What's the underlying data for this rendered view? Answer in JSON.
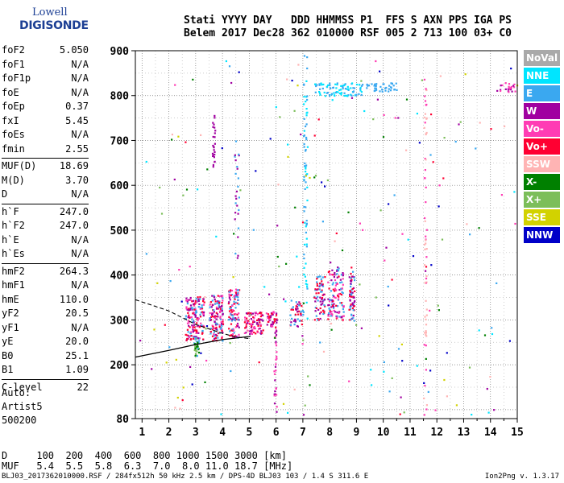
{
  "logo": {
    "line1": "Lowell",
    "line2": "DIGISONDE"
  },
  "header": {
    "labels": "Stati YYYY DAY   DDD HHMMSS P1  FFS S AXN PPS IGA PS",
    "values": "Belem 2017 Dec28 362 010000 RSF 005 2 713 100 03+ C0"
  },
  "params": [
    {
      "label": "foF2",
      "value": "5.050"
    },
    {
      "label": "foF1",
      "value": "N/A"
    },
    {
      "label": "foF1p",
      "value": "N/A"
    },
    {
      "label": "foE",
      "value": "N/A"
    },
    {
      "label": "foEp",
      "value": "0.37"
    },
    {
      "label": "fxI",
      "value": "5.45"
    },
    {
      "label": "foEs",
      "value": "N/A"
    },
    {
      "label": "fmin",
      "value": "2.55"
    },
    {
      "label": "MUF(D)",
      "value": "18.69"
    },
    {
      "label": "M(D)",
      "value": "3.70"
    },
    {
      "label": "D",
      "value": "N/A"
    },
    {
      "label": "h`F",
      "value": "247.0"
    },
    {
      "label": "h`F2",
      "value": "247.0"
    },
    {
      "label": "h`E",
      "value": "N/A"
    },
    {
      "label": "h`Es",
      "value": "N/A"
    },
    {
      "label": "hmF2",
      "value": "264.3"
    },
    {
      "label": "hmF1",
      "value": "N/A"
    },
    {
      "label": "hmE",
      "value": "110.0"
    },
    {
      "label": "yF2",
      "value": "20.5"
    },
    {
      "label": "yF1",
      "value": "N/A"
    },
    {
      "label": "yE",
      "value": "20.0"
    },
    {
      "label": "B0",
      "value": "25.1"
    },
    {
      "label": "B1",
      "value": "1.09"
    },
    {
      "label": "C-level",
      "value": "22"
    }
  ],
  "auto": {
    "line1": "Auto:",
    "line2": "Artist5",
    "line3": "500200"
  },
  "legend": [
    {
      "label": "NoVal",
      "color": "#a9a9a9"
    },
    {
      "label": "NNE",
      "color": "#00e5ff"
    },
    {
      "label": "E",
      "color": "#3aa8f0"
    },
    {
      "label": "W",
      "color": "#a000a0"
    },
    {
      "label": "Vo-",
      "color": "#ff3cb4"
    },
    {
      "label": "Vo+",
      "color": "#ff0032"
    },
    {
      "label": "SSW",
      "color": "#ffb4b4"
    },
    {
      "label": "X-",
      "color": "#008000"
    },
    {
      "label": "X+",
      "color": "#7cbe5a"
    },
    {
      "label": "SSE",
      "color": "#d2d200"
    },
    {
      "label": "NNW",
      "color": "#0000c8"
    }
  ],
  "dmuf": {
    "d_row": "D     100  200  400  600  800 1000 1500 3000 [km]",
    "muf_row": "MUF   5.4  5.5  5.8  6.3  7.0  8.0 11.0 18.7 [MHz]"
  },
  "footer": "BLJ03_2017362010000.RSF / 284fx512h 50 kHz 2.5 km / DPS-4D BLJ03 103 / 1.4 S 311.6 E",
  "version": "Ion2Png v. 1.3.17",
  "chart_data": {
    "type": "scatter",
    "xlim": [
      0.75,
      15
    ],
    "ylim": [
      80,
      900
    ],
    "x_ticks": [
      1,
      2,
      3,
      4,
      5,
      6,
      7,
      8,
      9,
      10,
      11,
      12,
      13,
      14,
      15
    ],
    "y_ticks": [
      80,
      200,
      300,
      400,
      500,
      600,
      700,
      800,
      900
    ],
    "grid": true,
    "legend_placement": "right",
    "clusters": [
      {
        "x": [
          2.6,
          3.3
        ],
        "y": [
          255,
          355
        ],
        "n": 160,
        "colors": [
          "#a000a0",
          "#ff0032",
          "#ff3cb4",
          "#3aa8f0"
        ]
      },
      {
        "x": [
          3.5,
          4.0
        ],
        "y": [
          255,
          360
        ],
        "n": 130,
        "colors": [
          "#a000a0",
          "#ff0032",
          "#ff3cb4",
          "#3aa8f0"
        ]
      },
      {
        "x": [
          4.2,
          4.6
        ],
        "y": [
          260,
          370
        ],
        "n": 110,
        "colors": [
          "#a000a0",
          "#ff0032",
          "#ff3cb4",
          "#3aa8f0"
        ]
      },
      {
        "x": [
          4.8,
          5.5
        ],
        "y": [
          270,
          320
        ],
        "n": 90,
        "colors": [
          "#a000a0",
          "#ff0032",
          "#ff3cb4"
        ]
      },
      {
        "x": [
          5.6,
          6.0
        ],
        "y": [
          285,
          320
        ],
        "n": 40,
        "colors": [
          "#a000a0",
          "#ff0032",
          "#ff3cb4"
        ]
      },
      {
        "x": [
          6.5,
          7.0
        ],
        "y": [
          285,
          345
        ],
        "n": 50,
        "colors": [
          "#ff0032",
          "#a000a0",
          "#3aa8f0"
        ]
      },
      {
        "x": [
          7.4,
          7.8
        ],
        "y": [
          300,
          400
        ],
        "n": 70,
        "colors": [
          "#ff0032",
          "#a000a0",
          "#3aa8f0"
        ]
      },
      {
        "x": [
          7.9,
          8.5
        ],
        "y": [
          300,
          420
        ],
        "n": 120,
        "colors": [
          "#ff0032",
          "#a000a0",
          "#3aa8f0",
          "#ff3cb4"
        ]
      },
      {
        "x": [
          8.7,
          8.9
        ],
        "y": [
          300,
          410
        ],
        "n": 60,
        "colors": [
          "#3aa8f0",
          "#a000a0",
          "#ff0032"
        ]
      },
      {
        "x": [
          2.9,
          3.1
        ],
        "y": [
          220,
          260
        ],
        "n": 30,
        "colors": [
          "#3aa8f0",
          "#7cbe5a",
          "#008000"
        ]
      },
      {
        "x": [
          7.0,
          7.15
        ],
        "y": [
          300,
          900
        ],
        "n": 70,
        "colors": [
          "#3aa8f0",
          "#00e5ff"
        ]
      },
      {
        "x": [
          7.4,
          9.2
        ],
        "y": [
          800,
          830
        ],
        "n": 90,
        "colors": [
          "#3aa8f0",
          "#00e5ff"
        ]
      },
      {
        "x": [
          9.3,
          10.5
        ],
        "y": [
          810,
          830
        ],
        "n": 40,
        "colors": [
          "#3aa8f0"
        ]
      },
      {
        "x": [
          3.6,
          3.7
        ],
        "y": [
          640,
          760
        ],
        "n": 25,
        "colors": [
          "#a000a0"
        ]
      },
      {
        "x": [
          5.9,
          6.0
        ],
        "y": [
          90,
          300
        ],
        "n": 30,
        "colors": [
          "#a000a0",
          "#ff3cb4"
        ]
      },
      {
        "x": [
          11.5,
          11.6
        ],
        "y": [
          90,
          860
        ],
        "n": 60,
        "colors": [
          "#ffb4b4",
          "#ff3cb4"
        ]
      },
      {
        "x": [
          14.2,
          14.9
        ],
        "y": [
          810,
          830
        ],
        "n": 25,
        "colors": [
          "#a000a0",
          "#ff3cb4"
        ]
      },
      {
        "x": [
          4.4,
          4.6
        ],
        "y": [
          400,
          700
        ],
        "n": 25,
        "colors": [
          "#3aa8f0",
          "#a000a0"
        ]
      },
      {
        "x": [
          0.8,
          15
        ],
        "y": [
          90,
          880
        ],
        "n": 220,
        "colors": [
          "#3aa8f0",
          "#a000a0",
          "#ff3cb4",
          "#ff0032",
          "#008000",
          "#7cbe5a",
          "#d2d200",
          "#0000c8",
          "#ffb4b4",
          "#00e5ff"
        ]
      }
    ],
    "profile_solid": {
      "x": [
        0.75,
        2,
        3,
        4,
        5,
        5.05
      ],
      "y": [
        217,
        232,
        245,
        256,
        263,
        264.3
      ]
    },
    "trace_dashed": {
      "x": [
        0.75,
        2,
        3,
        4,
        4.5,
        5.05
      ],
      "y": [
        345,
        320,
        290,
        270,
        262,
        258
      ]
    }
  }
}
